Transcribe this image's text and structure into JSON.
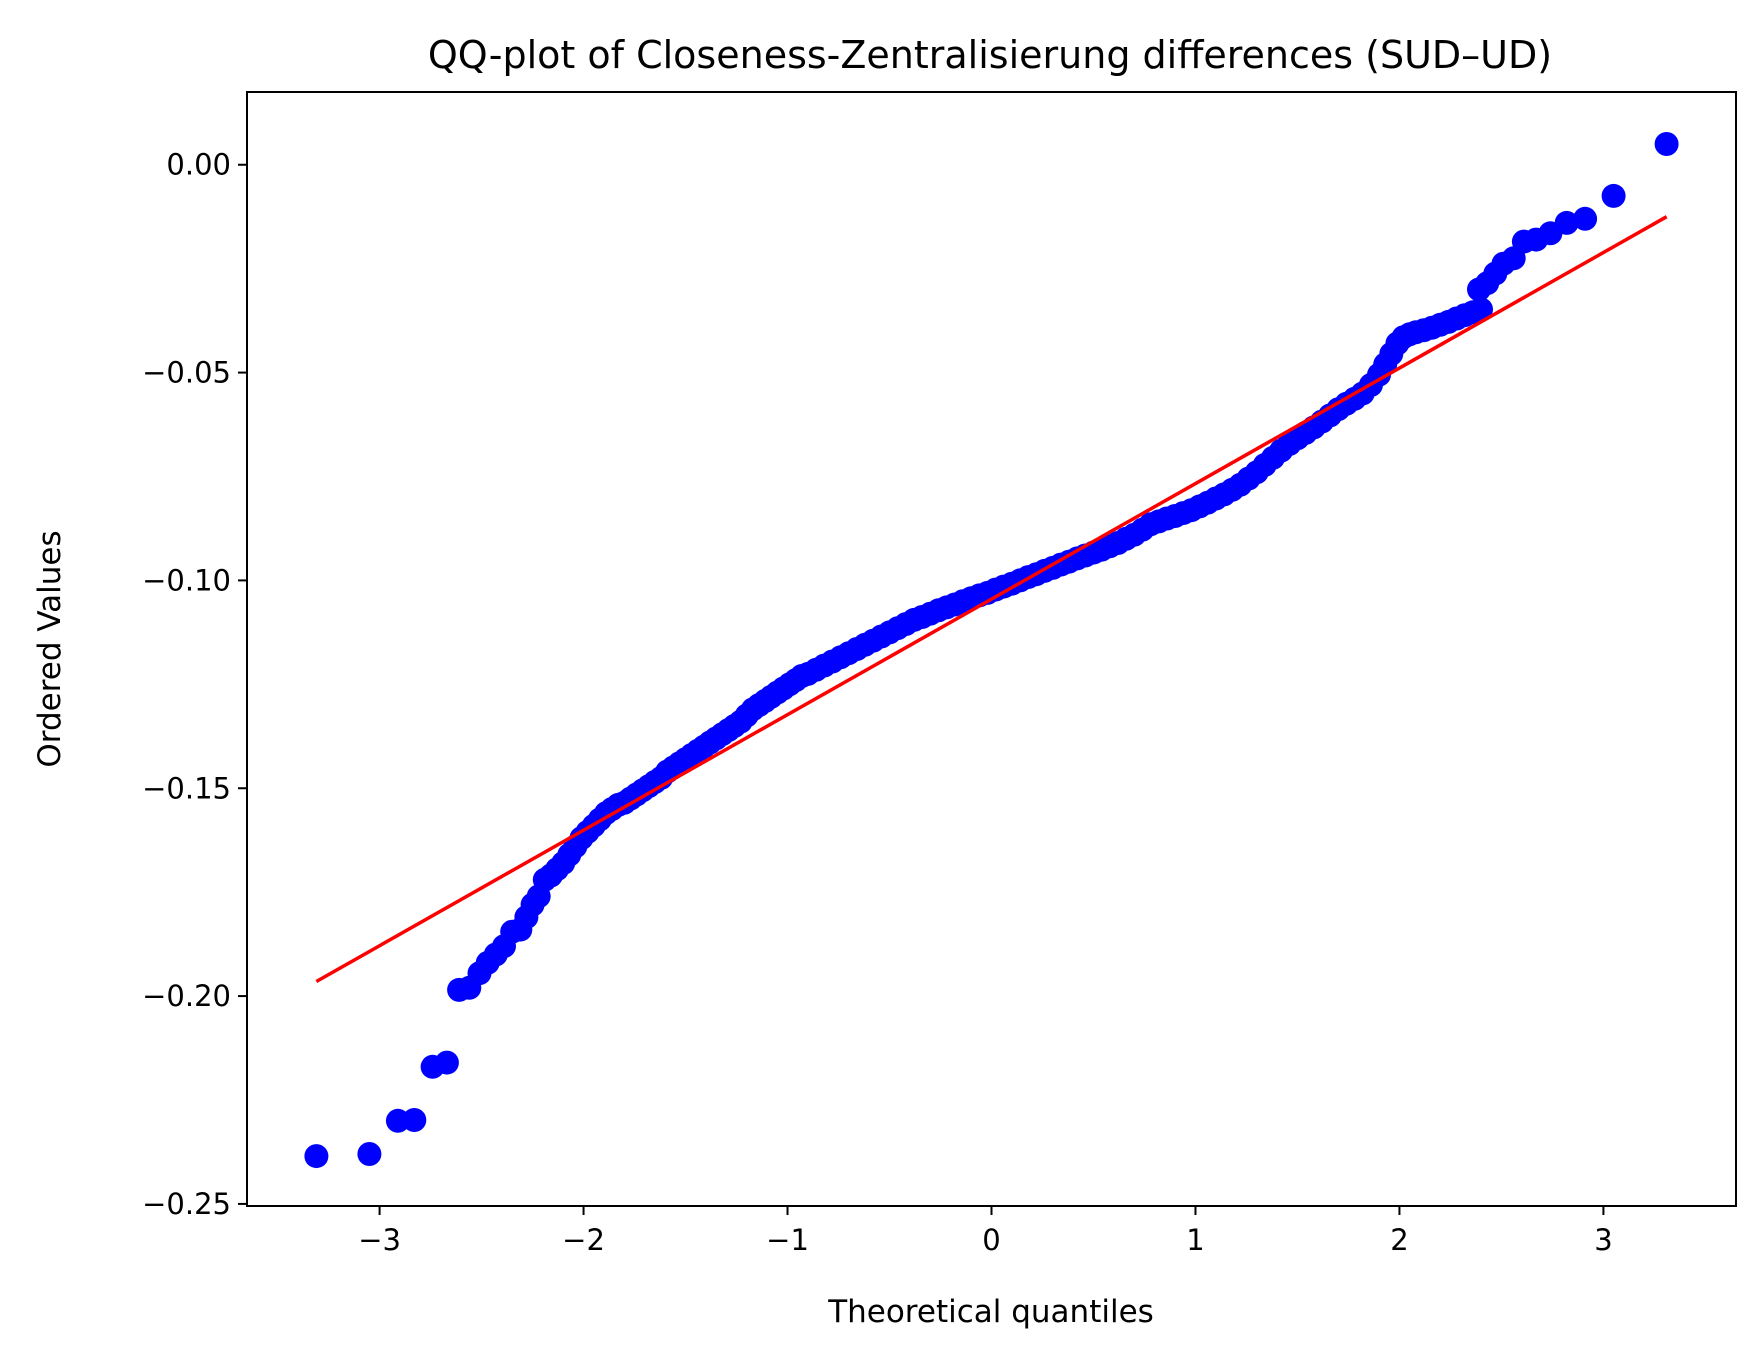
{
  "chart_data": {
    "type": "scatter",
    "title": "QQ-plot of Closeness-Zentralisierung differences (SUD–UD)",
    "xlabel": "Theoretical quantiles",
    "ylabel": "Ordered Values",
    "xlim": [
      -3.65,
      3.65
    ],
    "ylim": [
      -0.2505,
      0.0175
    ],
    "x_ticks": [
      -3,
      -2,
      -1,
      0,
      1,
      2,
      3
    ],
    "x_tick_labels": [
      "−3",
      "−2",
      "−1",
      "0",
      "1",
      "2",
      "3"
    ],
    "y_ticks": [
      0.0,
      -0.05,
      -0.1,
      -0.15,
      -0.2,
      -0.25
    ],
    "y_tick_labels": [
      "0.00",
      "−0.05",
      "−0.10",
      "−0.15",
      "−0.20",
      "−0.25"
    ],
    "grid": false,
    "legend": "none",
    "point_color": "#0000ff",
    "line_color": "#ff0000",
    "sample_quantiles": [
      [
        -3.31,
        -0.2385
      ],
      [
        -3.05,
        -0.238
      ],
      [
        -2.91,
        -0.23
      ],
      [
        -2.83,
        -0.2298
      ],
      [
        -2.74,
        -0.217
      ],
      [
        -2.67,
        -0.216
      ],
      [
        -2.61,
        -0.1985
      ],
      [
        -2.56,
        -0.198
      ],
      [
        -2.51,
        -0.1945
      ],
      [
        -2.47,
        -0.192
      ],
      [
        -2.43,
        -0.19
      ],
      [
        -2.39,
        -0.188
      ],
      [
        -2.35,
        -0.1845
      ],
      [
        -2.31,
        -0.184
      ],
      [
        -2.28,
        -0.181
      ],
      [
        -2.25,
        -0.178
      ],
      [
        -2.22,
        -0.176
      ],
      [
        -2.19,
        -0.172
      ],
      [
        -2.16,
        -0.171
      ],
      [
        -2.13,
        -0.1695
      ],
      [
        -2.1,
        -0.168
      ],
      [
        -2.07,
        -0.166
      ],
      [
        -2.04,
        -0.164
      ],
      [
        -2.01,
        -0.162
      ],
      [
        -1.98,
        -0.1605
      ],
      [
        -1.95,
        -0.159
      ],
      [
        -1.92,
        -0.1575
      ],
      [
        -1.89,
        -0.156
      ],
      [
        -1.86,
        -0.155
      ],
      [
        -1.83,
        -0.154
      ],
      [
        -1.8,
        -0.1535
      ],
      [
        -1.77,
        -0.1525
      ],
      [
        -1.74,
        -0.1515
      ],
      [
        -1.71,
        -0.1505
      ],
      [
        -1.68,
        -0.1495
      ],
      [
        -1.65,
        -0.1485
      ],
      [
        -1.62,
        -0.1475
      ],
      [
        -1.59,
        -0.146
      ],
      [
        -1.56,
        -0.145
      ],
      [
        -1.53,
        -0.144
      ],
      [
        -1.5,
        -0.143
      ],
      [
        -1.47,
        -0.142
      ],
      [
        -1.44,
        -0.141
      ],
      [
        -1.41,
        -0.14
      ],
      [
        -1.38,
        -0.139
      ],
      [
        -1.35,
        -0.138
      ],
      [
        -1.32,
        -0.137
      ],
      [
        -1.29,
        -0.136
      ],
      [
        -1.26,
        -0.135
      ],
      [
        -1.23,
        -0.134
      ],
      [
        -1.2,
        -0.1325
      ],
      [
        -1.17,
        -0.131
      ],
      [
        -1.14,
        -0.13
      ],
      [
        -1.11,
        -0.129
      ],
      [
        -1.08,
        -0.128
      ],
      [
        -1.05,
        -0.127
      ],
      [
        -1.02,
        -0.126
      ],
      [
        -0.99,
        -0.125
      ],
      [
        -0.96,
        -0.124
      ],
      [
        -0.93,
        -0.123
      ],
      [
        -0.9,
        -0.1225
      ],
      [
        -0.86,
        -0.1215
      ],
      [
        -0.82,
        -0.1205
      ],
      [
        -0.78,
        -0.1195
      ],
      [
        -0.74,
        -0.1185
      ],
      [
        -0.7,
        -0.1175
      ],
      [
        -0.66,
        -0.1165
      ],
      [
        -0.62,
        -0.1155
      ],
      [
        -0.58,
        -0.1145
      ],
      [
        -0.54,
        -0.1135
      ],
      [
        -0.5,
        -0.1125
      ],
      [
        -0.46,
        -0.1115
      ],
      [
        -0.42,
        -0.1105
      ],
      [
        -0.38,
        -0.1095
      ],
      [
        -0.34,
        -0.1088
      ],
      [
        -0.3,
        -0.108
      ],
      [
        -0.26,
        -0.1072
      ],
      [
        -0.22,
        -0.1065
      ],
      [
        -0.18,
        -0.1058
      ],
      [
        -0.14,
        -0.105
      ],
      [
        -0.1,
        -0.1043
      ],
      [
        -0.06,
        -0.1036
      ],
      [
        -0.02,
        -0.103
      ],
      [
        0.02,
        -0.1022
      ],
      [
        0.06,
        -0.1015
      ],
      [
        0.1,
        -0.1008
      ],
      [
        0.14,
        -0.1
      ],
      [
        0.18,
        -0.0992
      ],
      [
        0.22,
        -0.0985
      ],
      [
        0.26,
        -0.0977
      ],
      [
        0.3,
        -0.097
      ],
      [
        0.34,
        -0.0962
      ],
      [
        0.38,
        -0.0955
      ],
      [
        0.42,
        -0.0947
      ],
      [
        0.46,
        -0.094
      ],
      [
        0.5,
        -0.0933
      ],
      [
        0.54,
        -0.0926
      ],
      [
        0.58,
        -0.0918
      ],
      [
        0.62,
        -0.091
      ],
      [
        0.66,
        -0.09
      ],
      [
        0.7,
        -0.089
      ],
      [
        0.74,
        -0.0878
      ],
      [
        0.78,
        -0.0865
      ],
      [
        0.82,
        -0.0858
      ],
      [
        0.86,
        -0.0851
      ],
      [
        0.9,
        -0.0845
      ],
      [
        0.94,
        -0.0838
      ],
      [
        0.98,
        -0.0831
      ],
      [
        1.02,
        -0.0822
      ],
      [
        1.06,
        -0.0813
      ],
      [
        1.1,
        -0.0803
      ],
      [
        1.14,
        -0.0793
      ],
      [
        1.18,
        -0.0782
      ],
      [
        1.22,
        -0.077
      ],
      [
        1.26,
        -0.0755
      ],
      [
        1.3,
        -0.074
      ],
      [
        1.34,
        -0.0722
      ],
      [
        1.38,
        -0.0705
      ],
      [
        1.42,
        -0.0688
      ],
      [
        1.46,
        -0.0672
      ],
      [
        1.5,
        -0.0658
      ],
      [
        1.54,
        -0.0645
      ],
      [
        1.58,
        -0.0632
      ],
      [
        1.62,
        -0.0618
      ],
      [
        1.66,
        -0.0603
      ],
      [
        1.7,
        -0.0588
      ],
      [
        1.74,
        -0.0575
      ],
      [
        1.78,
        -0.0563
      ],
      [
        1.82,
        -0.055
      ],
      [
        1.86,
        -0.053
      ],
      [
        1.9,
        -0.0505
      ],
      [
        1.93,
        -0.048
      ],
      [
        1.96,
        -0.0455
      ],
      [
        1.99,
        -0.043
      ],
      [
        2.02,
        -0.0415
      ],
      [
        2.05,
        -0.0408
      ],
      [
        2.08,
        -0.0403
      ],
      [
        2.12,
        -0.0398
      ],
      [
        2.16,
        -0.0392
      ],
      [
        2.2,
        -0.0385
      ],
      [
        2.24,
        -0.0378
      ],
      [
        2.28,
        -0.037
      ],
      [
        2.32,
        -0.0362
      ],
      [
        2.36,
        -0.0355
      ],
      [
        2.4,
        -0.0348
      ],
      [
        2.39,
        -0.03
      ],
      [
        2.43,
        -0.0285
      ],
      [
        2.47,
        -0.0262
      ],
      [
        2.51,
        -0.0238
      ],
      [
        2.56,
        -0.0225
      ],
      [
        2.61,
        -0.0185
      ],
      [
        2.67,
        -0.018
      ],
      [
        2.74,
        -0.0165
      ],
      [
        2.82,
        -0.014
      ],
      [
        2.91,
        -0.013
      ],
      [
        3.05,
        -0.0075
      ],
      [
        3.31,
        0.005
      ]
    ],
    "reference_line": {
      "x": [
        -3.31,
        3.31
      ],
      "y": [
        -0.1965,
        -0.0125
      ]
    }
  }
}
